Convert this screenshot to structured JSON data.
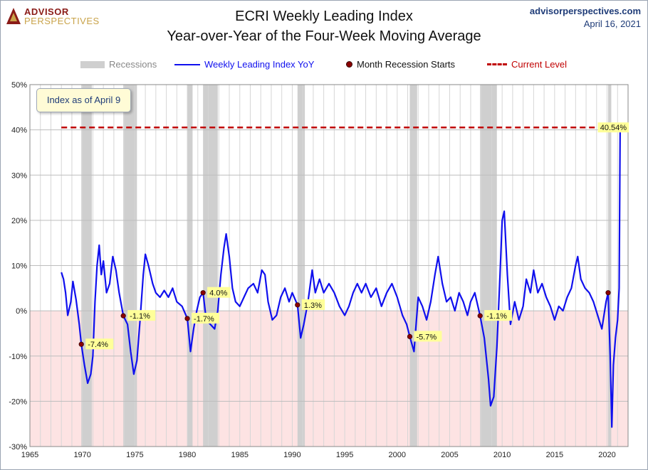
{
  "header": {
    "logo_top": "ADVISOR",
    "logo_bottom": "PERSPECTIVES",
    "title_line1": "ECRI Weekly Leading Index",
    "title_line2": "Year-over-Year of the Four-Week Moving Average",
    "site": "advisorperspectives.com",
    "date": "April 16, 2021"
  },
  "legend": {
    "recessions": "Recessions",
    "series": "Weekly Leading Index YoY",
    "month_start": "Month Recession Starts",
    "current": "Current Level"
  },
  "note": "Index as of April 9",
  "colors": {
    "series": "#1010ee",
    "current_level": "#c00000",
    "recession": "#cfcfcf",
    "negative_zone": "#fde3e3",
    "marker": "#8b0000",
    "label_bg": "#ffff99"
  },
  "chart_data": {
    "type": "line",
    "title": "ECRI Weekly Leading Index Year-over-Year of the Four-Week Moving Average",
    "xlim": [
      1965,
      2022
    ],
    "ylim": [
      -30,
      50
    ],
    "x_ticks": [
      1965,
      1970,
      1975,
      1980,
      1985,
      1990,
      1995,
      2000,
      2005,
      2010,
      2015,
      2020
    ],
    "y_ticks": [
      -30,
      -20,
      -10,
      0,
      10,
      20,
      30,
      40,
      50
    ],
    "y_tick_labels": [
      "-30%",
      "-20%",
      "-10%",
      "0%",
      "10%",
      "20%",
      "30%",
      "40%",
      "50%"
    ],
    "grid": true,
    "legend_position": "top",
    "current_level": 40.54,
    "current_label": "40.54%",
    "recessions": [
      [
        1969.9,
        1970.9
      ],
      [
        1973.9,
        1975.2
      ],
      [
        1980.0,
        1980.5
      ],
      [
        1981.5,
        1982.9
      ],
      [
        1990.5,
        1991.2
      ],
      [
        2001.2,
        2001.9
      ],
      [
        2007.9,
        2009.5
      ],
      [
        2020.1,
        2020.4
      ]
    ],
    "recession_starts": [
      {
        "x": 1969.9,
        "y": -7.4,
        "label": "-7.4%"
      },
      {
        "x": 1973.9,
        "y": -1.1,
        "label": "-1.1%"
      },
      {
        "x": 1980.0,
        "y": -1.7,
        "label": "-1.7%"
      },
      {
        "x": 1981.5,
        "y": 4.0,
        "label": "4.0%"
      },
      {
        "x": 1990.5,
        "y": 1.3,
        "label": "1.3%"
      },
      {
        "x": 2001.2,
        "y": -5.7,
        "label": "-5.7%"
      },
      {
        "x": 2007.9,
        "y": -1.1,
        "label": "-1.1%"
      },
      {
        "x": 2020.1,
        "y": 4.0,
        "label": ""
      }
    ],
    "series": [
      {
        "name": "Weekly Leading Index YoY",
        "points": [
          [
            1968.0,
            8.5
          ],
          [
            1968.2,
            7.0
          ],
          [
            1968.4,
            4.0
          ],
          [
            1968.6,
            -1.0
          ],
          [
            1968.9,
            2.0
          ],
          [
            1969.1,
            6.5
          ],
          [
            1969.4,
            2.5
          ],
          [
            1969.7,
            -3.0
          ],
          [
            1969.9,
            -7.4
          ],
          [
            1970.2,
            -12.0
          ],
          [
            1970.5,
            -16.0
          ],
          [
            1970.8,
            -14.0
          ],
          [
            1971.0,
            -10.0
          ],
          [
            1971.2,
            2.0
          ],
          [
            1971.4,
            10.0
          ],
          [
            1971.6,
            14.5
          ],
          [
            1971.8,
            8.0
          ],
          [
            1972.0,
            11.0
          ],
          [
            1972.3,
            4.0
          ],
          [
            1972.6,
            6.0
          ],
          [
            1972.9,
            12.0
          ],
          [
            1973.2,
            9.0
          ],
          [
            1973.5,
            4.0
          ],
          [
            1973.9,
            -1.1
          ],
          [
            1974.3,
            -3.0
          ],
          [
            1974.6,
            -9.0
          ],
          [
            1974.9,
            -14.0
          ],
          [
            1975.2,
            -11.0
          ],
          [
            1975.5,
            -2.0
          ],
          [
            1975.8,
            8.0
          ],
          [
            1976.0,
            12.5
          ],
          [
            1976.3,
            10.0
          ],
          [
            1976.7,
            6.0
          ],
          [
            1977.0,
            4.0
          ],
          [
            1977.4,
            3.0
          ],
          [
            1977.8,
            4.5
          ],
          [
            1978.2,
            3.0
          ],
          [
            1978.6,
            5.0
          ],
          [
            1979.0,
            2.0
          ],
          [
            1979.5,
            1.0
          ],
          [
            1980.0,
            -1.7
          ],
          [
            1980.3,
            -9.0
          ],
          [
            1980.6,
            -4.0
          ],
          [
            1980.9,
            0.0
          ],
          [
            1981.2,
            3.0
          ],
          [
            1981.5,
            4.0
          ],
          [
            1981.8,
            -2.0
          ],
          [
            1982.2,
            -3.0
          ],
          [
            1982.6,
            -4.0
          ],
          [
            1982.9,
            0.0
          ],
          [
            1983.2,
            8.0
          ],
          [
            1983.5,
            14.0
          ],
          [
            1983.7,
            17.0
          ],
          [
            1984.0,
            12.0
          ],
          [
            1984.3,
            5.0
          ],
          [
            1984.6,
            2.0
          ],
          [
            1985.0,
            1.0
          ],
          [
            1985.4,
            3.0
          ],
          [
            1985.8,
            5.0
          ],
          [
            1986.3,
            6.0
          ],
          [
            1986.7,
            4.0
          ],
          [
            1987.1,
            9.0
          ],
          [
            1987.4,
            8.0
          ],
          [
            1987.7,
            2.0
          ],
          [
            1988.1,
            -2.0
          ],
          [
            1988.5,
            -1.0
          ],
          [
            1988.9,
            3.0
          ],
          [
            1989.3,
            5.0
          ],
          [
            1989.7,
            2.0
          ],
          [
            1990.0,
            4.0
          ],
          [
            1990.5,
            1.3
          ],
          [
            1990.8,
            -6.0
          ],
          [
            1991.1,
            -3.0
          ],
          [
            1991.5,
            2.0
          ],
          [
            1991.9,
            9.0
          ],
          [
            1992.2,
            4.0
          ],
          [
            1992.6,
            7.0
          ],
          [
            1993.0,
            4.0
          ],
          [
            1993.5,
            6.0
          ],
          [
            1994.0,
            4.0
          ],
          [
            1994.5,
            1.0
          ],
          [
            1995.0,
            -1.0
          ],
          [
            1995.4,
            1.0
          ],
          [
            1995.8,
            4.0
          ],
          [
            1996.2,
            6.0
          ],
          [
            1996.6,
            4.0
          ],
          [
            1997.0,
            6.0
          ],
          [
            1997.5,
            3.0
          ],
          [
            1998.0,
            5.0
          ],
          [
            1998.5,
            1.0
          ],
          [
            1999.0,
            4.0
          ],
          [
            1999.5,
            6.0
          ],
          [
            2000.0,
            3.0
          ],
          [
            2000.5,
            -1.0
          ],
          [
            2000.9,
            -3.0
          ],
          [
            2001.2,
            -5.7
          ],
          [
            2001.6,
            -9.0
          ],
          [
            2002.0,
            3.0
          ],
          [
            2002.4,
            1.0
          ],
          [
            2002.8,
            -2.0
          ],
          [
            2003.2,
            2.0
          ],
          [
            2003.6,
            8.0
          ],
          [
            2003.9,
            12.0
          ],
          [
            2004.3,
            6.0
          ],
          [
            2004.7,
            2.0
          ],
          [
            2005.1,
            3.0
          ],
          [
            2005.5,
            0.0
          ],
          [
            2005.9,
            4.0
          ],
          [
            2006.3,
            2.0
          ],
          [
            2006.7,
            -1.0
          ],
          [
            2007.0,
            2.0
          ],
          [
            2007.4,
            4.0
          ],
          [
            2007.9,
            -1.1
          ],
          [
            2008.3,
            -6.0
          ],
          [
            2008.7,
            -15.0
          ],
          [
            2008.9,
            -21.0
          ],
          [
            2009.2,
            -19.0
          ],
          [
            2009.5,
            -8.0
          ],
          [
            2009.8,
            8.0
          ],
          [
            2010.0,
            20.0
          ],
          [
            2010.2,
            22.0
          ],
          [
            2010.5,
            8.0
          ],
          [
            2010.8,
            -3.0
          ],
          [
            2011.2,
            2.0
          ],
          [
            2011.6,
            -2.0
          ],
          [
            2012.0,
            1.0
          ],
          [
            2012.3,
            7.0
          ],
          [
            2012.7,
            4.0
          ],
          [
            2013.0,
            9.0
          ],
          [
            2013.4,
            4.0
          ],
          [
            2013.8,
            6.0
          ],
          [
            2014.2,
            3.0
          ],
          [
            2014.6,
            1.0
          ],
          [
            2015.0,
            -2.0
          ],
          [
            2015.4,
            1.0
          ],
          [
            2015.8,
            0.0
          ],
          [
            2016.2,
            3.0
          ],
          [
            2016.6,
            5.0
          ],
          [
            2017.0,
            10.0
          ],
          [
            2017.2,
            12.0
          ],
          [
            2017.5,
            7.0
          ],
          [
            2017.9,
            5.0
          ],
          [
            2018.3,
            4.0
          ],
          [
            2018.7,
            2.0
          ],
          [
            2019.1,
            -1.0
          ],
          [
            2019.5,
            -4.0
          ],
          [
            2019.9,
            2.0
          ],
          [
            2020.1,
            4.0
          ],
          [
            2020.3,
            -10.0
          ],
          [
            2020.45,
            -25.7
          ],
          [
            2020.6,
            -12.0
          ],
          [
            2020.8,
            -6.0
          ],
          [
            2021.0,
            -2.0
          ],
          [
            2021.15,
            5.0
          ],
          [
            2021.25,
            40.54
          ]
        ]
      }
    ]
  }
}
